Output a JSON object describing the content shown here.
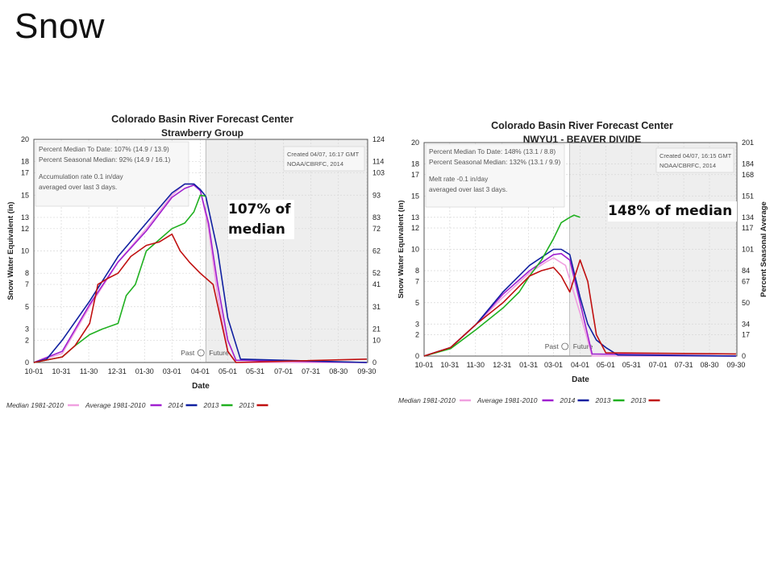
{
  "slide": {
    "title": "Snow",
    "callout_left": "107% of median",
    "callout_right": "148% of median"
  },
  "chart_data": [
    {
      "type": "line",
      "title": "Colorado Basin River Forecast Center",
      "subtitle": "Strawberry Group",
      "xlabel": "Date",
      "ylabel": "Snow Water Equivalent (in)",
      "y2label": "",
      "ylim": [
        0,
        20
      ],
      "yticks": [
        0,
        2,
        3,
        5,
        7,
        8,
        10,
        12,
        13,
        15,
        17,
        18,
        20
      ],
      "y2ticks": [
        0,
        10,
        21,
        31,
        41,
        52,
        62,
        72,
        83,
        93,
        103,
        114,
        124
      ],
      "xticks": [
        "10-01",
        "10-31",
        "11-30",
        "12-31",
        "01-30",
        "03-01",
        "04-01",
        "05-01",
        "05-31",
        "07-01",
        "07-31",
        "08-30",
        "09-30"
      ],
      "future_start": "04-07",
      "info_lines": [
        "Percent Median To Date: 107% (14.9 / 13.9)",
        "Percent Seasonal Median: 92% (14.9 / 16.1)",
        "Accumulation rate 0.1 in/day",
        "averaged over last 3 days."
      ],
      "created": [
        "Created 04/07, 16:17 GMT",
        "NOAA/CBRFC, 2014"
      ],
      "past_label": "Past",
      "future_label": "Future",
      "legend_position": "bottom",
      "series": [
        {
          "name": "Median 1981-2010",
          "color": "#f0a0e0",
          "x": [
            "10-01",
            "11-01",
            "12-01",
            "01-01",
            "02-01",
            "03-01",
            "03-15",
            "03-25",
            "04-01",
            "04-10",
            "04-20",
            "05-01",
            "05-10",
            "09-30"
          ],
          "values": [
            0,
            0.8,
            5,
            9,
            12,
            15,
            16,
            16,
            15.5,
            12,
            6,
            1,
            0,
            0
          ]
        },
        {
          "name": "Average 1981-2010",
          "color": "#a020d0",
          "x": [
            "10-01",
            "11-01",
            "12-01",
            "01-01",
            "02-01",
            "03-01",
            "03-15",
            "03-25",
            "04-01",
            "04-10",
            "04-20",
            "05-01",
            "05-10",
            "09-30"
          ],
          "values": [
            0,
            1,
            5.2,
            9,
            11.8,
            14.8,
            15.6,
            15.9,
            15.4,
            12.5,
            7,
            2,
            0.2,
            0
          ]
        },
        {
          "name": "2014",
          "color": "#1020a0",
          "x": [
            "10-01",
            "10-15",
            "11-01",
            "12-01",
            "01-01",
            "02-01",
            "03-01",
            "03-15",
            "03-25",
            "04-01",
            "04-07",
            "04-20",
            "05-01",
            "05-15",
            "09-30"
          ],
          "values": [
            0,
            0.3,
            2,
            5.5,
            9.5,
            12.5,
            15.2,
            16,
            16,
            15.5,
            14.9,
            10,
            4,
            0.3,
            0
          ]
        },
        {
          "name": "2013",
          "color": "#20b020",
          "x": [
            "10-01",
            "11-01",
            "11-15",
            "12-01",
            "12-15",
            "01-01",
            "01-10",
            "01-20",
            "02-01",
            "02-15",
            "03-01",
            "03-15",
            "03-25",
            "04-01",
            "04-07"
          ],
          "values": [
            0,
            0.5,
            1.5,
            2.5,
            3,
            3.5,
            6,
            7,
            10,
            11,
            12,
            12.5,
            13.5,
            15,
            14.9
          ]
        },
        {
          "name": "2013",
          "color": "#c01010",
          "x": [
            "10-01",
            "11-01",
            "11-15",
            "12-01",
            "12-10",
            "12-20",
            "01-01",
            "01-15",
            "02-01",
            "02-15",
            "03-01",
            "03-10",
            "03-20",
            "04-01",
            "04-15",
            "05-01",
            "05-10",
            "09-30"
          ],
          "values": [
            0,
            0.5,
            1.5,
            3.5,
            7,
            7.5,
            8,
            9.5,
            10.5,
            10.8,
            11.5,
            10,
            9,
            8,
            7,
            1,
            0,
            0.3
          ]
        }
      ]
    },
    {
      "type": "line",
      "title": "Colorado Basin River Forecast Center",
      "subtitle": "NWYU1 - BEAVER DIVIDE",
      "xlabel": "Date",
      "ylabel": "Snow Water Equivalent (in)",
      "y2label": "Percent Seasonal Average",
      "ylim": [
        0,
        20
      ],
      "yticks": [
        0,
        2,
        3,
        5,
        7,
        8,
        10,
        12,
        13,
        15,
        17,
        18,
        20
      ],
      "y2ticks": [
        0,
        17,
        34,
        50,
        67,
        84,
        101,
        117,
        134,
        151,
        168,
        184,
        201
      ],
      "xticks": [
        "10-01",
        "10-31",
        "11-30",
        "12-31",
        "01-31",
        "03-01",
        "04-01",
        "05-01",
        "05-31",
        "07-01",
        "07-31",
        "08-30",
        "09-30"
      ],
      "future_start": "03-20",
      "info_lines": [
        "Percent Median To Date: 148% (13.1 / 8.8)",
        "Percent Seasonal Median: 132% (13.1 / 9.9)",
        "Melt rate -0.1 in/day",
        "averaged over last 3 days."
      ],
      "created": [
        "Created 04/07, 16:15 GMT",
        "NOAA/CBRFC, 2014"
      ],
      "past_label": "Past",
      "future_label": "Future",
      "legend_position": "bottom",
      "series": [
        {
          "name": "Median 1981-2010",
          "color": "#f0a0e0",
          "x": [
            "10-01",
            "11-01",
            "12-01",
            "01-01",
            "02-01",
            "02-20",
            "03-01",
            "03-15",
            "04-01",
            "04-15",
            "09-30"
          ],
          "values": [
            0,
            0.8,
            3,
            5.5,
            7.8,
            8.8,
            9.2,
            8.5,
            4,
            0,
            0
          ]
        },
        {
          "name": "Average 1981-2010",
          "color": "#a020d0",
          "x": [
            "10-01",
            "11-01",
            "12-01",
            "01-01",
            "02-01",
            "03-01",
            "03-10",
            "03-20",
            "04-01",
            "04-15",
            "09-30"
          ],
          "values": [
            0,
            0.8,
            3,
            5.8,
            8,
            9.5,
            9.6,
            9,
            5,
            0.2,
            0
          ]
        },
        {
          "name": "2014",
          "color": "#1020a0",
          "x": [
            "10-01",
            "11-01",
            "12-01",
            "01-01",
            "02-01",
            "03-01",
            "03-10",
            "03-20",
            "04-01",
            "04-10",
            "04-20",
            "05-01",
            "05-15",
            "09-30"
          ],
          "values": [
            0,
            0.8,
            3,
            6,
            8.5,
            10,
            10,
            9.5,
            5.5,
            3,
            1.5,
            0.8,
            0.1,
            0
          ]
        },
        {
          "name": "2013",
          "color": "#20b020",
          "x": [
            "10-01",
            "11-01",
            "12-01",
            "01-01",
            "01-20",
            "02-01",
            "02-15",
            "03-01",
            "03-10",
            "03-20",
            "03-25",
            "04-01"
          ],
          "values": [
            0,
            0.7,
            2.5,
            4.5,
            6,
            7.5,
            9,
            11,
            12.5,
            13,
            13.2,
            13
          ]
        },
        {
          "name": "2013",
          "color": "#c01010",
          "x": [
            "10-01",
            "11-01",
            "12-01",
            "01-01",
            "02-01",
            "02-15",
            "03-01",
            "03-10",
            "03-20",
            "04-01",
            "04-10",
            "04-20",
            "05-01",
            "09-30"
          ],
          "values": [
            0,
            0.8,
            3,
            5,
            7.5,
            8,
            8.3,
            7.5,
            6,
            9,
            7,
            2,
            0.3,
            0.2
          ]
        }
      ]
    }
  ]
}
